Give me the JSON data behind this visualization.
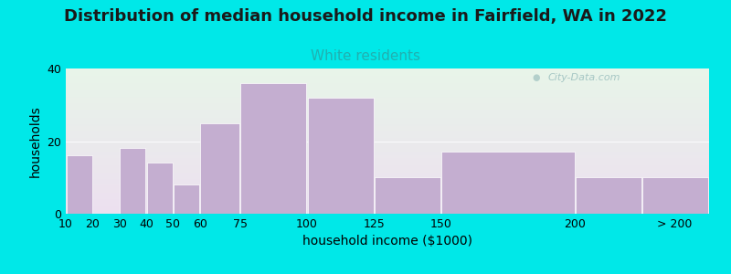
{
  "title": "Distribution of median household income in Fairfield, WA in 2022",
  "subtitle": "White residents",
  "xlabel": "household income ($1000)",
  "ylabel": "households",
  "bar_color": "#c4aed0",
  "background_fig": "#00e8e8",
  "background_ax_top": "#e8f5e9",
  "background_ax_bottom": "#ede0f0",
  "bar_left_edges": [
    10,
    20,
    30,
    40,
    50,
    60,
    75,
    100,
    125,
    150,
    200,
    225
  ],
  "bar_widths": [
    10,
    10,
    10,
    10,
    10,
    15,
    25,
    25,
    25,
    50,
    25,
    25
  ],
  "values": [
    16,
    0,
    18,
    14,
    8,
    25,
    36,
    32,
    10,
    17,
    10,
    10
  ],
  "xtick_positions": [
    10,
    20,
    30,
    40,
    50,
    60,
    75,
    100,
    125,
    150,
    200,
    237
  ],
  "xtick_labels": [
    "10",
    "20",
    "30",
    "40",
    "50",
    "60",
    "75",
    "100",
    "125",
    "150",
    "200",
    "> 200"
  ],
  "ylim": [
    0,
    40
  ],
  "yticks": [
    0,
    20,
    40
  ],
  "xlim": [
    10,
    250
  ],
  "watermark": "City-Data.com",
  "title_fontsize": 13,
  "subtitle_fontsize": 11,
  "subtitle_color": "#20b0b0",
  "axis_label_fontsize": 10,
  "tick_fontsize": 9,
  "title_color": "#1a1a1a"
}
